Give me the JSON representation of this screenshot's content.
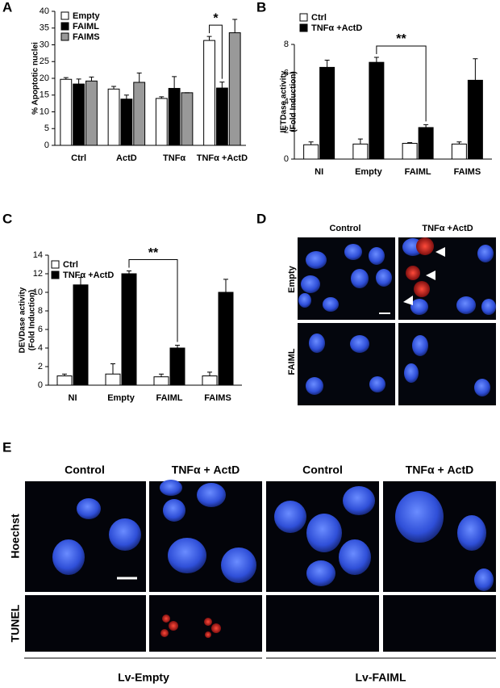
{
  "chart_data": [
    {
      "type": "bar",
      "panel": "A",
      "ylabel": [
        "% Apoptotic nuclei"
      ],
      "categories": [
        "Ctrl",
        "ActD",
        "TNFα",
        "TNFα +ActD"
      ],
      "series": [
        {
          "name": "Empty",
          "color": "#ffffff",
          "values": [
            19.7,
            16.8,
            14.0,
            31.3
          ],
          "errors": [
            0.5,
            0.8,
            0.5,
            1.2
          ]
        },
        {
          "name": "FAIML",
          "color": "#000000",
          "values": [
            18.3,
            13.8,
            17.0,
            17.1
          ],
          "errors": [
            1.5,
            1.2,
            3.5,
            1.8
          ]
        },
        {
          "name": "FAIMS",
          "color": "#999999",
          "values": [
            19.2,
            18.8,
            15.7,
            33.6
          ],
          "errors": [
            1.2,
            2.8,
            0,
            4.0
          ]
        }
      ],
      "ylim": [
        0,
        40
      ],
      "yticks": [
        0,
        5,
        10,
        15,
        20,
        25,
        30,
        35,
        40
      ],
      "annotation": "*"
    },
    {
      "type": "bar",
      "panel": "B",
      "ylabel": [
        "IETDase activity",
        "(Fold Induction)"
      ],
      "categories": [
        "NI",
        "Empty",
        "FAIML",
        "FAIMS"
      ],
      "series": [
        {
          "name": "Ctrl",
          "color": "#ffffff",
          "values": [
            1.0,
            1.05,
            1.1,
            1.05
          ],
          "errors": [
            0.2,
            0.35,
            0.05,
            0.15
          ]
        },
        {
          "name": "TNFα +ActD",
          "color": "#000000",
          "values": [
            6.4,
            6.75,
            2.2,
            5.5
          ],
          "errors": [
            0.5,
            0.35,
            0.2,
            1.5
          ]
        }
      ],
      "ylim": [
        0,
        8
      ],
      "yticks": [
        0,
        2,
        4,
        6,
        8
      ],
      "annotation": "**"
    },
    {
      "type": "bar",
      "panel": "C",
      "ylabel": [
        "DEVDase activity",
        "(Fold Induction)"
      ],
      "categories": [
        "NI",
        "Empty",
        "FAIML",
        "FAIMS"
      ],
      "series": [
        {
          "name": "Ctrl",
          "color": "#ffffff",
          "values": [
            1.0,
            1.2,
            0.9,
            1.0
          ],
          "errors": [
            0.2,
            1.1,
            0.3,
            0.4
          ]
        },
        {
          "name": "TNFα +ActD",
          "color": "#000000",
          "values": [
            10.8,
            12.0,
            4.0,
            10.0
          ],
          "errors": [
            0.8,
            0.3,
            0.3,
            1.4
          ]
        }
      ],
      "ylim": [
        0,
        14
      ],
      "yticks": [
        0,
        2,
        4,
        6,
        8,
        10,
        12,
        14
      ],
      "annotation": "**"
    }
  ],
  "panel_d": {
    "label": "D",
    "columns": [
      "Control",
      "TNFα +ActD"
    ],
    "rows": [
      "Empty",
      "FAIML"
    ]
  },
  "panel_e": {
    "label": "E",
    "columns": [
      "Control",
      "TNFα + ActD",
      "Control",
      "TNFα + ActD"
    ],
    "rows": [
      "Hoechst",
      "TUNEL"
    ],
    "groups": [
      "Lv-Empty",
      "Lv-FAIML"
    ]
  }
}
